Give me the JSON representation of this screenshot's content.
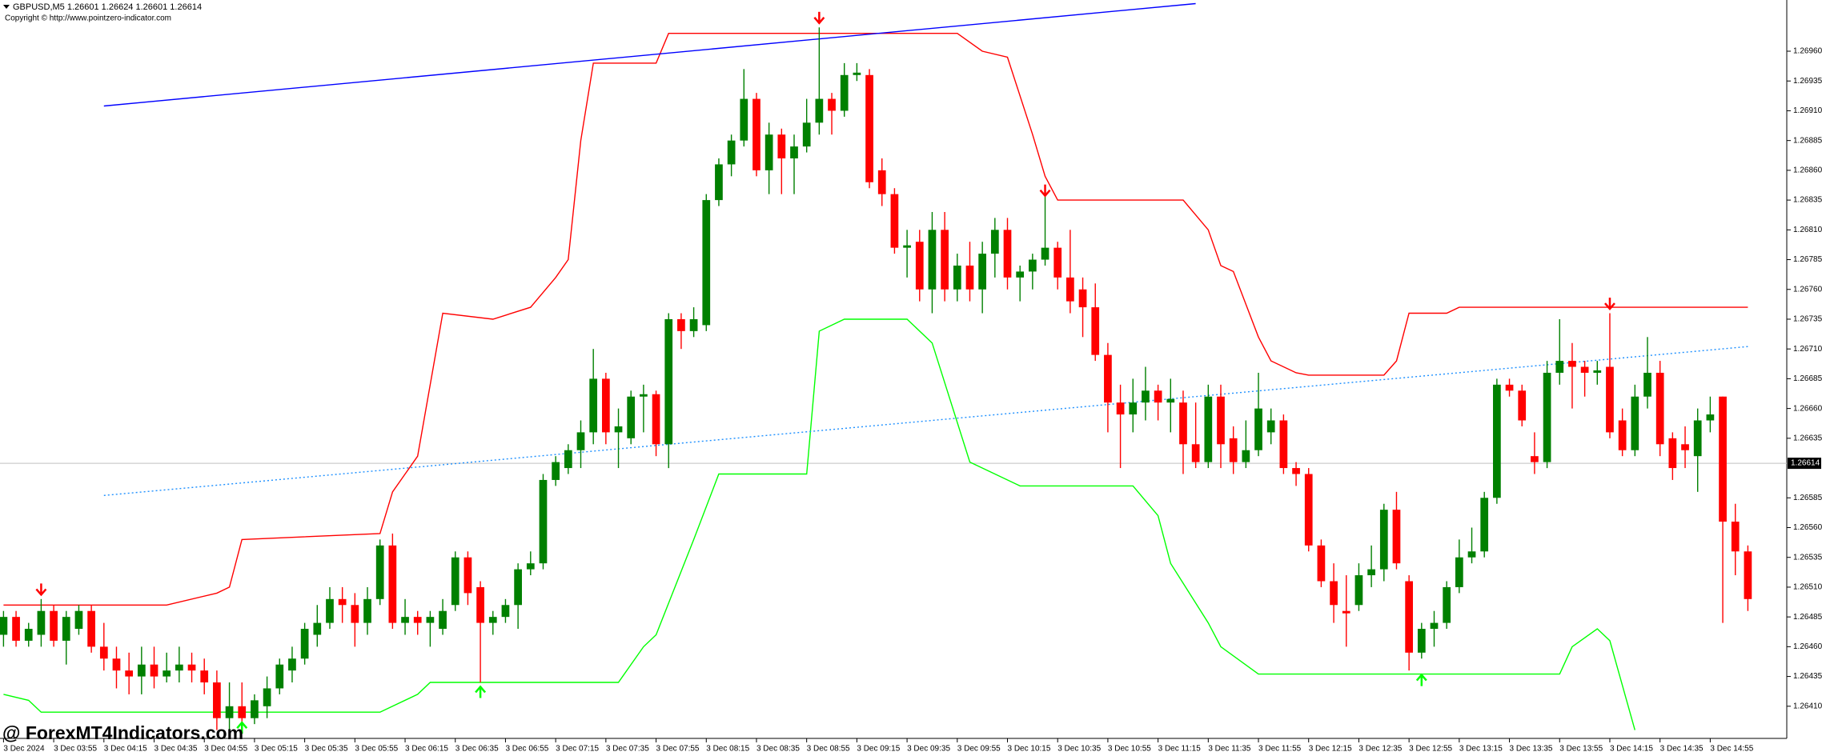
{
  "header": {
    "symbol_line": "GBPUSD,M5  1.26601 1.26624 1.26601 1.26614",
    "copyright": "Copyright © http://www.pointzero-indicator.com"
  },
  "watermark": "@ ForexMT4Indicators.com",
  "chart_data": {
    "type": "candlestick",
    "up_color": "#008000",
    "down_color": "#ff0000",
    "xlim": [
      -0.28,
      142.1
    ],
    "ylim": [
      1.26383,
      1.27003
    ],
    "yticks": [
      {
        "value": 1.2641,
        "label": "1.26410"
      },
      {
        "value": 1.26435,
        "label": "1.26435"
      },
      {
        "value": 1.2646,
        "label": "1.26460"
      },
      {
        "value": 1.26485,
        "label": "1.26485"
      },
      {
        "value": 1.2651,
        "label": "1.26510"
      },
      {
        "value": 1.26535,
        "label": "1.26535"
      },
      {
        "value": 1.2656,
        "label": "1.26560"
      },
      {
        "value": 1.26585,
        "label": "1.26585"
      },
      {
        "value": 1.26635,
        "label": "1.26635"
      },
      {
        "value": 1.2666,
        "label": "1.26660"
      },
      {
        "value": 1.26685,
        "label": "1.26685"
      },
      {
        "value": 1.2671,
        "label": "1.26710"
      },
      {
        "value": 1.26735,
        "label": "1.26735"
      },
      {
        "value": 1.2676,
        "label": "1.26760"
      },
      {
        "value": 1.26785,
        "label": "1.26785"
      },
      {
        "value": 1.2681,
        "label": "1.26810"
      },
      {
        "value": 1.26835,
        "label": "1.26835"
      },
      {
        "value": 1.2686,
        "label": "1.26860"
      },
      {
        "value": 1.26885,
        "label": "1.26885"
      },
      {
        "value": 1.2691,
        "label": "1.26910"
      },
      {
        "value": 1.26935,
        "label": "1.26935"
      },
      {
        "value": 1.2696,
        "label": "1.26960"
      }
    ],
    "xticks": [
      {
        "value": 0,
        "label": "3 Dec 2024"
      },
      {
        "value": 4,
        "label": "3 Dec 03:55"
      },
      {
        "value": 8,
        "label": "3 Dec 04:15"
      },
      {
        "value": 12,
        "label": "3 Dec 04:35"
      },
      {
        "value": 16,
        "label": "3 Dec 04:55"
      },
      {
        "value": 20,
        "label": "3 Dec 05:15"
      },
      {
        "value": 24,
        "label": "3 Dec 05:35"
      },
      {
        "value": 28,
        "label": "3 Dec 05:55"
      },
      {
        "value": 32,
        "label": "3 Dec 06:15"
      },
      {
        "value": 36,
        "label": "3 Dec 06:35"
      },
      {
        "value": 40,
        "label": "3 Dec 06:55"
      },
      {
        "value": 44,
        "label": "3 Dec 07:15"
      },
      {
        "value": 48,
        "label": "3 Dec 07:35"
      },
      {
        "value": 52,
        "label": "3 Dec 07:55"
      },
      {
        "value": 56,
        "label": "3 Dec 08:15"
      },
      {
        "value": 60,
        "label": "3 Dec 08:35"
      },
      {
        "value": 64,
        "label": "3 Dec 08:55"
      },
      {
        "value": 68,
        "label": "3 Dec 09:15"
      },
      {
        "value": 72,
        "label": "3 Dec 09:35"
      },
      {
        "value": 76,
        "label": "3 Dec 09:55"
      },
      {
        "value": 80,
        "label": "3 Dec 10:15"
      },
      {
        "value": 84,
        "label": "3 Dec 10:35"
      },
      {
        "value": 88,
        "label": "3 Dec 10:55"
      },
      {
        "value": 92,
        "label": "3 Dec 11:15"
      },
      {
        "value": 96,
        "label": "3 Dec 11:35"
      },
      {
        "value": 100,
        "label": "3 Dec 11:55"
      },
      {
        "value": 104,
        "label": "3 Dec 12:15"
      },
      {
        "value": 108,
        "label": "3 Dec 12:35"
      },
      {
        "value": 112,
        "label": "3 Dec 12:55"
      },
      {
        "value": 116,
        "label": "3 Dec 13:15"
      },
      {
        "value": 120,
        "label": "3 Dec 13:35"
      },
      {
        "value": 124,
        "label": "3 Dec 13:55"
      },
      {
        "value": 128,
        "label": "3 Dec 14:15"
      },
      {
        "value": 132,
        "label": "3 Dec 14:35"
      },
      {
        "value": 136,
        "label": "3 Dec 14:55"
      }
    ],
    "current_price": {
      "value": 1.26614,
      "label": "1.26614"
    },
    "candles": [
      [
        1.2647,
        1.2649,
        1.2646,
        1.26485
      ],
      [
        1.26485,
        1.2649,
        1.2646,
        1.26465
      ],
      [
        1.26465,
        1.2648,
        1.2646,
        1.26475
      ],
      [
        1.2647,
        1.265,
        1.2646,
        1.2649
      ],
      [
        1.2649,
        1.26495,
        1.2646,
        1.26465
      ],
      [
        1.26465,
        1.2649,
        1.26445,
        1.26485
      ],
      [
        1.26475,
        1.26495,
        1.2647,
        1.2649
      ],
      [
        1.2649,
        1.26495,
        1.26455,
        1.2646
      ],
      [
        1.2646,
        1.2648,
        1.2644,
        1.2645
      ],
      [
        1.2645,
        1.2646,
        1.26425,
        1.2644
      ],
      [
        1.2644,
        1.26455,
        1.2642,
        1.26435
      ],
      [
        1.26435,
        1.2646,
        1.2642,
        1.26445
      ],
      [
        1.26445,
        1.2646,
        1.26425,
        1.26435
      ],
      [
        1.26435,
        1.26455,
        1.2643,
        1.2644
      ],
      [
        1.2644,
        1.2646,
        1.2643,
        1.26445
      ],
      [
        1.26445,
        1.26455,
        1.2643,
        1.2644
      ],
      [
        1.2644,
        1.2645,
        1.2642,
        1.2643
      ],
      [
        1.2643,
        1.2644,
        1.2639,
        1.264
      ],
      [
        1.264,
        1.2643,
        1.2639,
        1.2641
      ],
      [
        1.2641,
        1.2643,
        1.26395,
        1.264
      ],
      [
        1.264,
        1.2642,
        1.26395,
        1.26415
      ],
      [
        1.2641,
        1.26435,
        1.264,
        1.26425
      ],
      [
        1.26425,
        1.2645,
        1.2642,
        1.26445
      ],
      [
        1.2644,
        1.2646,
        1.2643,
        1.2645
      ],
      [
        1.2645,
        1.2648,
        1.26445,
        1.26475
      ],
      [
        1.2647,
        1.26495,
        1.2646,
        1.2648
      ],
      [
        1.2648,
        1.2651,
        1.26475,
        1.265
      ],
      [
        1.265,
        1.2651,
        1.2648,
        1.26495
      ],
      [
        1.26495,
        1.26505,
        1.2646,
        1.2648
      ],
      [
        1.2648,
        1.2651,
        1.2647,
        1.265
      ],
      [
        1.265,
        1.2655,
        1.26495,
        1.26545
      ],
      [
        1.26545,
        1.26555,
        1.26475,
        1.2648
      ],
      [
        1.2648,
        1.265,
        1.2647,
        1.26485
      ],
      [
        1.26485,
        1.2649,
        1.2647,
        1.2648
      ],
      [
        1.2648,
        1.2649,
        1.2646,
        1.26485
      ],
      [
        1.26475,
        1.265,
        1.2647,
        1.2649
      ],
      [
        1.26495,
        1.2654,
        1.2649,
        1.26535
      ],
      [
        1.26535,
        1.2654,
        1.26495,
        1.26505
      ],
      [
        1.2651,
        1.26515,
        1.2643,
        1.2648
      ],
      [
        1.2648,
        1.2649,
        1.2647,
        1.26485
      ],
      [
        1.26485,
        1.265,
        1.2648,
        1.26495
      ],
      [
        1.26495,
        1.2653,
        1.26475,
        1.26525
      ],
      [
        1.26525,
        1.2654,
        1.2652,
        1.2653
      ],
      [
        1.2653,
        1.26605,
        1.26525,
        1.266
      ],
      [
        1.266,
        1.2662,
        1.26595,
        1.26615
      ],
      [
        1.2661,
        1.2663,
        1.26605,
        1.26625
      ],
      [
        1.26625,
        1.2665,
        1.2661,
        1.2664
      ],
      [
        1.2664,
        1.2671,
        1.2663,
        1.26685
      ],
      [
        1.26685,
        1.2669,
        1.2663,
        1.2664
      ],
      [
        1.2664,
        1.2666,
        1.2661,
        1.26645
      ],
      [
        1.26635,
        1.26675,
        1.2663,
        1.2667
      ],
      [
        1.2667,
        1.2668,
        1.2664,
        1.26672
      ],
      [
        1.26672,
        1.26675,
        1.2662,
        1.2663
      ],
      [
        1.2663,
        1.2674,
        1.2661,
        1.26735
      ],
      [
        1.26735,
        1.2674,
        1.2671,
        1.26725
      ],
      [
        1.26725,
        1.26745,
        1.2672,
        1.26735
      ],
      [
        1.2673,
        1.2684,
        1.26725,
        1.26835
      ],
      [
        1.26835,
        1.2687,
        1.2683,
        1.26865
      ],
      [
        1.26865,
        1.2689,
        1.26855,
        1.26885
      ],
      [
        1.26885,
        1.26945,
        1.2688,
        1.2692
      ],
      [
        1.2692,
        1.26925,
        1.26855,
        1.2686
      ],
      [
        1.2686,
        1.269,
        1.2684,
        1.2689
      ],
      [
        1.2689,
        1.26895,
        1.2684,
        1.2687
      ],
      [
        1.2687,
        1.2689,
        1.2684,
        1.2688
      ],
      [
        1.2688,
        1.2692,
        1.26875,
        1.269
      ],
      [
        1.269,
        1.2698,
        1.2689,
        1.2692
      ],
      [
        1.2692,
        1.26925,
        1.2689,
        1.2691
      ],
      [
        1.2691,
        1.2695,
        1.26905,
        1.2694
      ],
      [
        1.2694,
        1.2695,
        1.26935,
        1.26942
      ],
      [
        1.2694,
        1.26945,
        1.26845,
        1.2685
      ],
      [
        1.2686,
        1.2687,
        1.2683,
        1.2684
      ],
      [
        1.2684,
        1.26845,
        1.2679,
        1.26795
      ],
      [
        1.26795,
        1.2681,
        1.2677,
        1.26797
      ],
      [
        1.268,
        1.2681,
        1.2675,
        1.2676
      ],
      [
        1.2676,
        1.26825,
        1.2674,
        1.2681
      ],
      [
        1.2681,
        1.26825,
        1.2675,
        1.2676
      ],
      [
        1.2676,
        1.2679,
        1.2675,
        1.2678
      ],
      [
        1.2678,
        1.268,
        1.2675,
        1.2676
      ],
      [
        1.2676,
        1.268,
        1.2674,
        1.2679
      ],
      [
        1.2679,
        1.2682,
        1.2677,
        1.2681
      ],
      [
        1.2681,
        1.2682,
        1.2676,
        1.2677
      ],
      [
        1.2677,
        1.2678,
        1.2675,
        1.26775
      ],
      [
        1.26775,
        1.2679,
        1.2676,
        1.26785
      ],
      [
        1.26785,
        1.2684,
        1.2678,
        1.26795
      ],
      [
        1.26795,
        1.268,
        1.2676,
        1.2677
      ],
      [
        1.2677,
        1.2681,
        1.2674,
        1.2675
      ],
      [
        1.2676,
        1.2677,
        1.2672,
        1.26745
      ],
      [
        1.26745,
        1.26765,
        1.267,
        1.26705
      ],
      [
        1.26705,
        1.26715,
        1.2664,
        1.26665
      ],
      [
        1.26665,
        1.2668,
        1.2661,
        1.26655
      ],
      [
        1.26655,
        1.26685,
        1.2664,
        1.26665
      ],
      [
        1.26665,
        1.26695,
        1.2665,
        1.26675
      ],
      [
        1.26675,
        1.2668,
        1.2665,
        1.26665
      ],
      [
        1.26665,
        1.26685,
        1.2664,
        1.26668
      ],
      [
        1.26665,
        1.26675,
        1.26605,
        1.2663
      ],
      [
        1.2663,
        1.26665,
        1.2661,
        1.26615
      ],
      [
        1.26615,
        1.2668,
        1.2661,
        1.2667
      ],
      [
        1.2667,
        1.2668,
        1.2661,
        1.2663
      ],
      [
        1.26635,
        1.26645,
        1.26605,
        1.26615
      ],
      [
        1.26615,
        1.2665,
        1.2661,
        1.26625
      ],
      [
        1.26625,
        1.2669,
        1.2662,
        1.2666
      ],
      [
        1.2664,
        1.2666,
        1.2663,
        1.2665
      ],
      [
        1.2665,
        1.26655,
        1.26605,
        1.2661
      ],
      [
        1.2661,
        1.26615,
        1.26595,
        1.26605
      ],
      [
        1.26605,
        1.2661,
        1.2654,
        1.26545
      ],
      [
        1.26545,
        1.2655,
        1.2651,
        1.26515
      ],
      [
        1.26515,
        1.2653,
        1.2648,
        1.26495
      ],
      [
        1.2649,
        1.2652,
        1.2646,
        1.26488
      ],
      [
        1.26495,
        1.2653,
        1.2649,
        1.2652
      ],
      [
        1.2652,
        1.26545,
        1.2651,
        1.26525
      ],
      [
        1.26525,
        1.2658,
        1.26515,
        1.26575
      ],
      [
        1.26575,
        1.2659,
        1.26525,
        1.2653
      ],
      [
        1.26515,
        1.2652,
        1.2644,
        1.26455
      ],
      [
        1.26455,
        1.2648,
        1.2645,
        1.26475
      ],
      [
        1.26475,
        1.2649,
        1.2646,
        1.2648
      ],
      [
        1.2648,
        1.26515,
        1.26475,
        1.2651
      ],
      [
        1.2651,
        1.2655,
        1.26505,
        1.26535
      ],
      [
        1.26535,
        1.2656,
        1.2653,
        1.2654
      ],
      [
        1.2654,
        1.2659,
        1.26535,
        1.26585
      ],
      [
        1.26585,
        1.26685,
        1.2658,
        1.2668
      ],
      [
        1.2668,
        1.26685,
        1.2667,
        1.26675
      ],
      [
        1.26675,
        1.2668,
        1.26645,
        1.2665
      ],
      [
        1.2662,
        1.2664,
        1.26605,
        1.26615
      ],
      [
        1.26615,
        1.267,
        1.2661,
        1.2669
      ],
      [
        1.2669,
        1.26735,
        1.2668,
        1.267
      ],
      [
        1.267,
        1.26715,
        1.2666,
        1.26695
      ],
      [
        1.26695,
        1.267,
        1.2667,
        1.2669
      ],
      [
        1.2669,
        1.267,
        1.2668,
        1.26692
      ],
      [
        1.26695,
        1.2674,
        1.26635,
        1.2664
      ],
      [
        1.2665,
        1.2666,
        1.2662,
        1.26625
      ],
      [
        1.26625,
        1.2668,
        1.2662,
        1.2667
      ],
      [
        1.2667,
        1.2672,
        1.2666,
        1.2669
      ],
      [
        1.2669,
        1.267,
        1.2662,
        1.2663
      ],
      [
        1.26635,
        1.2664,
        1.266,
        1.2661
      ],
      [
        1.2663,
        1.26645,
        1.2661,
        1.26625
      ],
      [
        1.2662,
        1.2666,
        1.2659,
        1.2665
      ],
      [
        1.2665,
        1.2667,
        1.2664,
        1.26655
      ],
      [
        1.2667,
        1.2667,
        1.2648,
        1.26565
      ],
      [
        1.26565,
        1.2658,
        1.2652,
        1.2654
      ],
      [
        1.2654,
        1.26545,
        1.2649,
        1.265
      ]
    ],
    "lines": [
      {
        "color": "#ff0000",
        "style": "solid",
        "x": [
          0,
          13,
          17,
          18,
          19,
          30,
          31,
          33,
          35,
          39,
          42,
          44,
          45,
          46,
          47,
          52,
          53,
          76,
          78,
          80,
          82,
          83,
          84,
          94,
          96,
          97,
          98,
          100,
          101,
          103,
          104,
          110,
          111,
          112,
          115,
          116,
          139
        ],
        "values": [
          1.26495,
          1.26495,
          1.26505,
          1.2651,
          1.2655,
          1.26555,
          1.2659,
          1.2662,
          1.2674,
          1.26735,
          1.26745,
          1.2677,
          1.26785,
          1.26885,
          1.2695,
          1.2695,
          1.26975,
          1.26975,
          1.2696,
          1.26955,
          1.2689,
          1.26855,
          1.26835,
          1.26835,
          1.2681,
          1.2678,
          1.26775,
          1.2672,
          1.267,
          1.2669,
          1.26688,
          1.26688,
          1.267,
          1.2674,
          1.2674,
          1.26745,
          1.26745
        ]
      },
      {
        "color": "#00ff00",
        "style": "solid",
        "x": [
          0,
          2,
          3,
          30,
          31,
          33,
          34,
          49,
          51,
          52,
          55,
          57,
          64,
          65,
          67,
          72,
          74,
          77,
          81,
          90,
          92,
          93,
          96,
          97,
          100,
          124,
          125,
          127,
          128,
          130
        ],
        "values": [
          1.2642,
          1.26415,
          1.26405,
          1.26405,
          1.2641,
          1.2642,
          1.2643,
          1.2643,
          1.2646,
          1.2647,
          1.2655,
          1.26605,
          1.26605,
          1.26725,
          1.26735,
          1.26735,
          1.26715,
          1.26615,
          1.26595,
          1.26595,
          1.2657,
          1.2653,
          1.2648,
          1.2646,
          1.26437,
          1.26437,
          1.2646,
          1.26475,
          1.26465,
          1.2639
        ]
      },
      {
        "color": "#0000ff",
        "style": "solid",
        "x": [
          8,
          95
        ],
        "values": [
          1.26914,
          1.27
        ]
      },
      {
        "color": "#1e90ff",
        "style": "dotted",
        "x": [
          8,
          139
        ],
        "values": [
          1.26587,
          1.26712
        ]
      }
    ],
    "arrows": [
      {
        "direction": "down",
        "color": "#ff0000",
        "x": [
          3,
          65,
          83,
          128
        ],
        "values": [
          1.26505,
          1.26985,
          1.2684,
          1.26745
        ]
      },
      {
        "direction": "up",
        "color": "#00ff00",
        "x": [
          19,
          38,
          113
        ],
        "values": [
          1.26395,
          1.26425,
          1.26435
        ]
      }
    ]
  }
}
